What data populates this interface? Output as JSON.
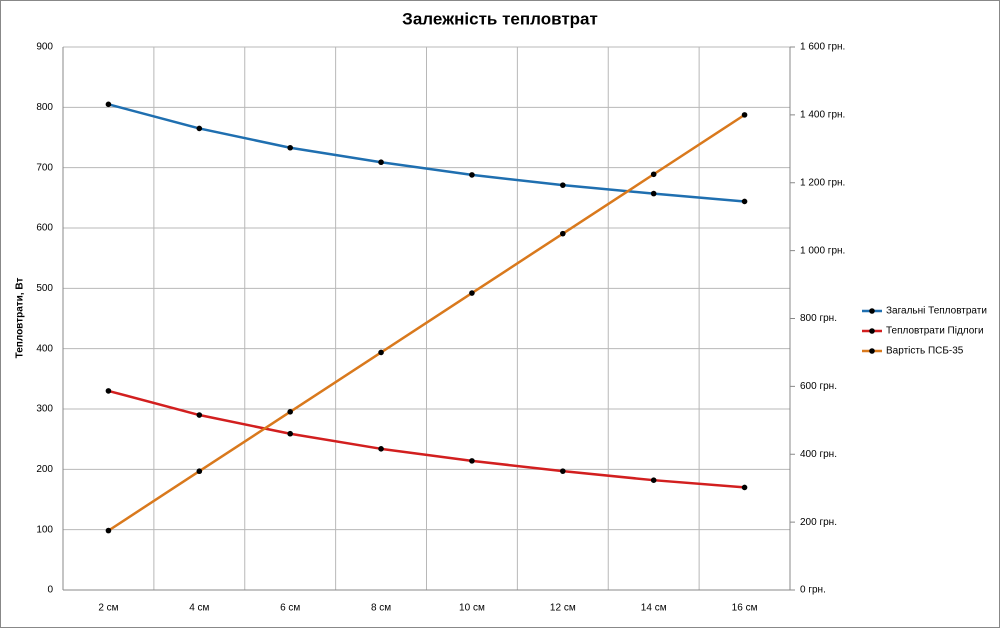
{
  "chart_data": {
    "type": "line",
    "title": "Залежність тепловтрат",
    "y_label": "Тепловтрати, Вт",
    "categories": [
      "2 см",
      "4 см",
      "6 см",
      "8 см",
      "10 см",
      "12 см",
      "14 см",
      "16 см"
    ],
    "series": [
      {
        "name": "Загальні Тепловтрати",
        "color": "#1f6fb0",
        "values": [
          805,
          765,
          733,
          709,
          688,
          671,
          657,
          644
        ]
      },
      {
        "name": "Тепловтрати Підлоги",
        "color": "#d21f1f",
        "values": [
          330,
          290,
          259,
          234,
          214,
          197,
          182,
          170
        ]
      },
      {
        "name": "Вартість ПСБ-35",
        "color": "#d9791d",
        "axis": "y2",
        "values": [
          175,
          350,
          525,
          700,
          875,
          1050,
          1225,
          1400
        ]
      }
    ],
    "ylim": [
      0,
      900
    ],
    "yticks": [
      0,
      100,
      200,
      300,
      400,
      500,
      600,
      700,
      800,
      900
    ],
    "y2lim": [
      0,
      1600
    ],
    "y2ticks": [
      {
        "value": 0,
        "label": "0 грн."
      },
      {
        "value": 200,
        "label": "200 грн."
      },
      {
        "value": 400,
        "label": "400 грн."
      },
      {
        "value": 600,
        "label": "600 грн."
      },
      {
        "value": 800,
        "label": "800 грн."
      },
      {
        "value": 1000,
        "label": "1 000 грн."
      },
      {
        "value": 1200,
        "label": "1 200 грн."
      },
      {
        "value": 1400,
        "label": "1 400 грн."
      },
      {
        "value": 1600,
        "label": "1 600 грн."
      }
    ],
    "grid": true,
    "legend": "right"
  }
}
